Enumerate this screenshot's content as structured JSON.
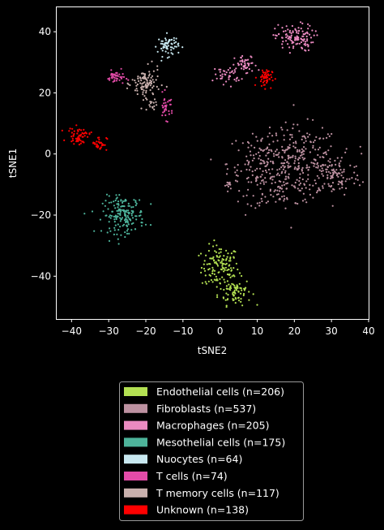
{
  "chart_data": {
    "type": "scatter",
    "title": "",
    "xlabel": "tSNE2",
    "ylabel": "tSNE1",
    "xlim": [
      -44,
      40
    ],
    "ylim": [
      -54,
      48
    ],
    "xticks": [
      -40,
      -30,
      -20,
      -10,
      0,
      10,
      20,
      30,
      40
    ],
    "yticks": [
      -40,
      -20,
      0,
      20,
      40
    ],
    "grid": false,
    "legend_position": "below",
    "background": "#000000",
    "series": [
      {
        "name": "Endothelial cells (n=206)",
        "color": "#b3e052",
        "clusters": [
          {
            "cx": 0,
            "cy": -37,
            "sx": 2.5,
            "sy": 3.5,
            "n": 130
          },
          {
            "cx": 4,
            "cy": -45,
            "sx": 2.2,
            "sy": 2.2,
            "n": 76
          }
        ]
      },
      {
        "name": "Fibroblasts (n=537)",
        "color": "#bd91a1",
        "clusters": [
          {
            "cx": 12,
            "cy": -3,
            "sx": 5,
            "sy": 5,
            "n": 160
          },
          {
            "cx": 22,
            "cy": -2,
            "sx": 5,
            "sy": 5.5,
            "n": 200
          },
          {
            "cx": 31,
            "cy": -7,
            "sx": 3.5,
            "sy": 3.5,
            "n": 100
          },
          {
            "cx": 16,
            "cy": -12,
            "sx": 4.5,
            "sy": 3,
            "n": 67
          },
          {
            "cx": 2,
            "cy": -10,
            "sx": 0.6,
            "sy": 0.6,
            "n": 10
          }
        ]
      },
      {
        "name": "Macrophages (n=205)",
        "color": "#ea8ac0",
        "clusters": [
          {
            "cx": 20,
            "cy": 38,
            "sx": 2.6,
            "sy": 2.2,
            "n": 120
          },
          {
            "cx": 7,
            "cy": 29,
            "sx": 1.5,
            "sy": 1.6,
            "n": 45
          },
          {
            "cx": 2,
            "cy": 26,
            "sx": 1.8,
            "sy": 1.5,
            "n": 40
          }
        ]
      },
      {
        "name": "Mesothelial cells (n=175)",
        "color": "#4db39a",
        "clusters": [
          {
            "cx": -26,
            "cy": -20,
            "sx": 2.8,
            "sy": 3,
            "n": 175
          }
        ]
      },
      {
        "name": "Nuocytes (n=64)",
        "color": "#c8e8f0",
        "clusters": [
          {
            "cx": -14,
            "cy": 35.5,
            "sx": 1.4,
            "sy": 1.7,
            "n": 64
          }
        ]
      },
      {
        "name": "T cells (n=74)",
        "color": "#e34ba8",
        "clusters": [
          {
            "cx": -28,
            "cy": 25,
            "sx": 1.2,
            "sy": 1.1,
            "n": 40
          },
          {
            "cx": -14.5,
            "cy": 15.5,
            "sx": 0.9,
            "sy": 2,
            "n": 34
          }
        ]
      },
      {
        "name": "T memory cells (n=117)",
        "color": "#c9b0ad",
        "clusters": [
          {
            "cx": -20,
            "cy": 23,
            "sx": 1.9,
            "sy": 2.5,
            "n": 100
          },
          {
            "cx": -19,
            "cy": 16,
            "sx": 0.9,
            "sy": 1.2,
            "n": 17
          }
        ]
      },
      {
        "name": "Unknown (n=138)",
        "color": "#ff0000",
        "clusters": [
          {
            "cx": -38,
            "cy": 6,
            "sx": 1.5,
            "sy": 1.3,
            "n": 55
          },
          {
            "cx": -32.5,
            "cy": 3.5,
            "sx": 1,
            "sy": 1.2,
            "n": 33
          },
          {
            "cx": 12,
            "cy": 25,
            "sx": 1,
            "sy": 1.6,
            "n": 50
          }
        ]
      }
    ]
  }
}
